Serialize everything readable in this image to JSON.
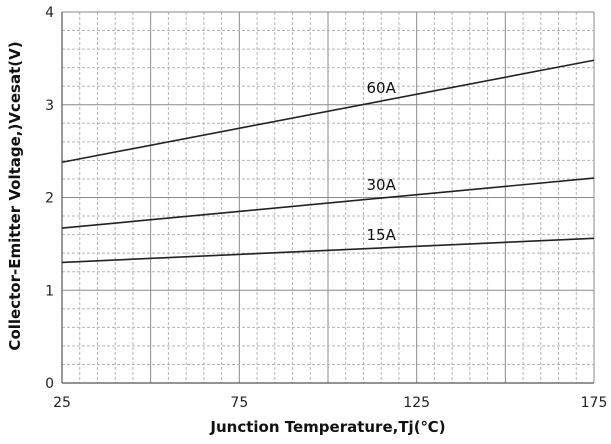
{
  "chart_data": {
    "type": "line",
    "title": "",
    "xlabel": "Junction Temperature,Tj(℃)",
    "ylabel": "Collector-Emitter Voltage,)Vcesat(V)",
    "xlim": [
      25,
      175
    ],
    "ylim": [
      0,
      4
    ],
    "x_ticks": [
      "25",
      "75",
      "125",
      "175"
    ],
    "y_ticks": [
      "0",
      "1",
      "2",
      "3",
      "4"
    ],
    "grid": true,
    "series": [
      {
        "name": "60A",
        "x": [
          25,
          175
        ],
        "y": [
          2.38,
          3.48
        ]
      },
      {
        "name": "30A",
        "x": [
          25,
          175
        ],
        "y": [
          1.67,
          2.21
        ]
      },
      {
        "name": "15A",
        "x": [
          25,
          175
        ],
        "y": [
          1.3,
          1.56
        ]
      }
    ]
  }
}
